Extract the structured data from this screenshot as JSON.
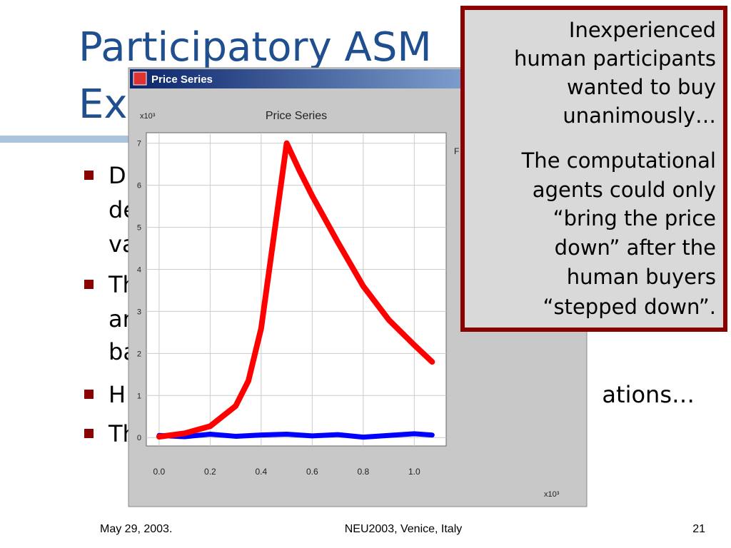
{
  "slide": {
    "title_lines": [
      "Participatory ASM",
      "Ex"
    ],
    "bullets": [
      {
        "lines": [
          "D",
          "de",
          "va"
        ]
      },
      {
        "lines": [
          "Th",
          "ar",
          "ba"
        ]
      },
      {
        "lines": [
          "H"
        ],
        "tail": "ations…"
      },
      {
        "lines": [
          "Th"
        ]
      }
    ],
    "callout": [
      [
        "Inexperienced",
        "human participants",
        "wanted to buy",
        "unanimously…"
      ],
      [
        "The computational",
        "agents could only",
        "“bring the price",
        "down” after the",
        "human buyers",
        "“stepped down”."
      ]
    ],
    "footer": {
      "date": "May 29, 2003.",
      "event": "NEU2003, Venice, Italy",
      "page": "21"
    }
  },
  "window": {
    "title": "Price Series"
  },
  "chart_data": {
    "type": "line",
    "title": "Price Series",
    "y_multiplier": "x10³",
    "x_multiplier": "x10³",
    "legend_fragment": "F",
    "xlim": [
      -0.05,
      1.125
    ],
    "ylim": [
      -0.2,
      7.25
    ],
    "xticks": [
      {
        "value": 0,
        "label": "0.0"
      },
      {
        "value": 0.2,
        "label": "0.2"
      },
      {
        "value": 0.4,
        "label": "0.4"
      },
      {
        "value": 0.6,
        "label": "0.6"
      },
      {
        "value": 0.8,
        "label": "0.8"
      },
      {
        "value": 1,
        "label": "1.0"
      }
    ],
    "yticks": [
      0,
      1,
      2,
      3,
      4,
      5,
      6,
      7
    ],
    "grid": true,
    "series": [
      {
        "color": "#ff0000",
        "x": [
          0,
          0.1,
          0.2,
          0.3,
          0.35,
          0.4,
          0.45,
          0.5,
          0.55,
          0.6,
          0.7,
          0.8,
          0.9,
          1.0,
          1.07
        ],
        "values": [
          0.02,
          0.1,
          0.27,
          0.75,
          1.35,
          2.6,
          4.8,
          7.0,
          6.35,
          5.75,
          4.65,
          3.6,
          2.8,
          2.2,
          1.8
        ]
      },
      {
        "color": "#0000ff",
        "x": [
          0,
          0.1,
          0.2,
          0.3,
          0.4,
          0.5,
          0.6,
          0.7,
          0.8,
          0.9,
          1.0,
          1.07
        ],
        "values": [
          0.05,
          0.02,
          0.08,
          0.03,
          0.06,
          0.08,
          0.04,
          0.07,
          0.01,
          0.05,
          0.09,
          0.06
        ]
      }
    ]
  }
}
